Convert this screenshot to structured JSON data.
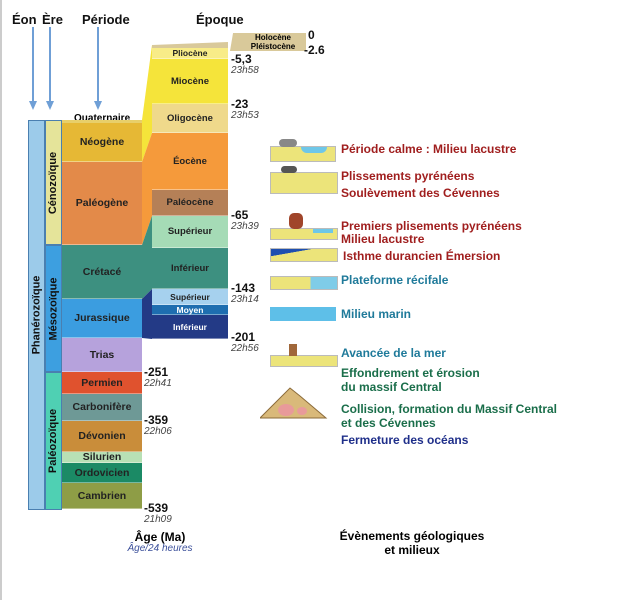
{
  "headers": {
    "eon": "Éon",
    "era": "Ère",
    "period": "Période",
    "epoch": "Époque"
  },
  "eon": {
    "label": "Phanérozoïque",
    "color": "#9ccbea"
  },
  "eras": [
    {
      "label": "Cénozoïque",
      "color": "#e5e49a"
    },
    {
      "label": "Mésozoïque",
      "color": "#3d9fe0"
    },
    {
      "label": "Paléozoïque",
      "color": "#4fd0b3"
    }
  ],
  "quaternary_label": "Quaternaire",
  "periods": [
    {
      "label": "Néogène",
      "color": "#e6b835"
    },
    {
      "label": "Paléogène",
      "color": "#e38a49"
    },
    {
      "label": "Crétacé",
      "color": "#3d9080"
    },
    {
      "label": "Jurassique",
      "color": "#3b9de0"
    },
    {
      "label": "Trias",
      "color": "#b6a2dc"
    },
    {
      "label": "Permien",
      "color": "#e0522e"
    },
    {
      "label": "Carbonifère",
      "color": "#6e9996"
    },
    {
      "label": "Dévonien",
      "color": "#c98d3a"
    },
    {
      "label": "Silurien",
      "color": "#b8e0b5"
    },
    {
      "label": "Ordovicien",
      "color": "#1b8a65"
    },
    {
      "label": "Cambrien",
      "color": "#8e9d46"
    }
  ],
  "epochs": [
    {
      "label": "Pliocène",
      "color": "#f8ec88"
    },
    {
      "label": "Miocène",
      "color": "#f5e43a"
    },
    {
      "label": "Oligocène",
      "color": "#efd98b"
    },
    {
      "label": "Éocène",
      "color": "#f59a3b"
    },
    {
      "label": "Paléocène",
      "color": "#b58057"
    },
    {
      "label": "Supérieur",
      "color": "#a5dbb6"
    },
    {
      "label": "Inférieur",
      "color": "#3d9080"
    },
    {
      "label": "Supérieur",
      "color": "#a6d1ee"
    },
    {
      "label": "Moyen",
      "color": "#1e6eb0"
    },
    {
      "label": "Inférieur",
      "color": "#233a86"
    }
  ],
  "quaternary_epochs": {
    "holocene": "Holocène",
    "pleistocene": "Pléistocène",
    "color": "#d9c99a"
  },
  "ages": [
    {
      "ma": "0"
    },
    {
      "ma": "-2.6"
    },
    {
      "ma": "-5,3",
      "time": "23h58"
    },
    {
      "ma": "-23",
      "time": "23h53"
    },
    {
      "ma": "-65",
      "time": "23h39"
    },
    {
      "ma": "-143",
      "time": "23h14"
    },
    {
      "ma": "-201",
      "time": "22h56"
    },
    {
      "ma": "-251",
      "time": "22h41"
    },
    {
      "ma": "-359",
      "time": "22h06"
    },
    {
      "ma": "-539",
      "time": "21h09"
    }
  ],
  "axis": {
    "age_label": "Âge (Ma)",
    "age24_label": "Âge/24 heures"
  },
  "events_title": [
    "Évènements géologiques",
    "et milieux"
  ],
  "events": [
    {
      "text": "Période calme : Milieu lacustre",
      "color": "#a01e1e"
    },
    {
      "text": "Plissements pyrénéens",
      "color": "#a01e1e"
    },
    {
      "text": "Soulèvement des Cévennes",
      "color": "#a01e1e"
    },
    {
      "text": "Premiers plisements pyrénéens",
      "color": "#a01e1e"
    },
    {
      "text": "Milieu lacustre",
      "color": "#a01e1e"
    },
    {
      "text": "Isthme durancien Émersion",
      "color": "#a01e1e"
    },
    {
      "text": "Plateforme récifale",
      "color": "#1f7a9a"
    },
    {
      "text": "Milieu marin",
      "color": "#1f7a9a"
    },
    {
      "text": "Avancée de la mer",
      "color": "#1f7a9a"
    },
    {
      "text": "Effondrement et érosion",
      "color": "#1a6e4a"
    },
    {
      "text": "du massif Central",
      "color": "#1a6e4a"
    },
    {
      "text": "Collision, formation du Massif Central",
      "color": "#1a6e4a"
    },
    {
      "text": "et des Cévennes",
      "color": "#1a6e4a"
    },
    {
      "text": "Fermeture des océans",
      "color": "#1f2f8a"
    }
  ]
}
